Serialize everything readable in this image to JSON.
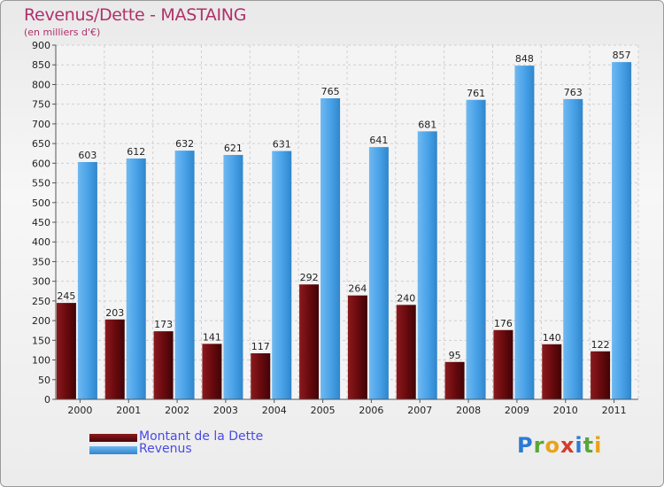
{
  "title": "Revenus/Dette - MASTAING",
  "subtitle": "(en milliers d'€)",
  "logo": [
    "P",
    "r",
    "o",
    "x",
    "i",
    "t",
    "i"
  ],
  "logo_colors": [
    "#2b7bd6",
    "#5aa63a",
    "#e8a317",
    "#d63a2b",
    "#2b7bd6",
    "#5aa63a",
    "#e8a317"
  ],
  "legend": [
    {
      "label": "Montant de la Dette",
      "color": "#6a0a0e"
    },
    {
      "label": "Revenus",
      "color": "#4aa3e8"
    }
  ],
  "chart_data": {
    "type": "bar",
    "title": "Revenus/Dette - MASTAING",
    "ylabel": "(en milliers d'€)",
    "xlabel": "",
    "ylim": [
      0,
      900
    ],
    "yticks": [
      0,
      50,
      100,
      150,
      200,
      250,
      300,
      350,
      400,
      450,
      500,
      550,
      600,
      650,
      700,
      750,
      800,
      850,
      900
    ],
    "categories": [
      "2000",
      "2001",
      "2002",
      "2003",
      "2004",
      "2005",
      "2006",
      "2007",
      "2008",
      "2009",
      "2010",
      "2011"
    ],
    "series": [
      {
        "name": "Montant de la Dette",
        "color": "#6a0a0e",
        "values": [
          245,
          203,
          173,
          141,
          117,
          292,
          264,
          240,
          95,
          176,
          140,
          122
        ]
      },
      {
        "name": "Revenus",
        "color": "#4aa3e8",
        "values": [
          603,
          612,
          632,
          621,
          631,
          765,
          641,
          681,
          761,
          848,
          763,
          857
        ]
      }
    ],
    "grid": true,
    "legend_position": "bottom-left"
  }
}
